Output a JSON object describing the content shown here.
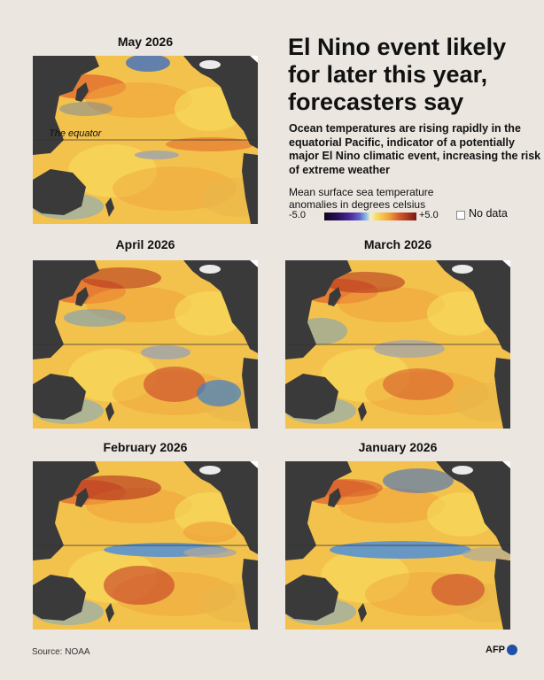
{
  "header": {
    "title": "El Nino event likely for later this year, forecasters say",
    "subtitle": "Ocean temperatures are rising rapidly in the equatorial Pacific, indicator of a potentially major El Nino climatic event, increasing the risk of extreme weather"
  },
  "legend": {
    "title": "Mean surface sea temperature anomalies in degrees celsius",
    "min_label": "-5.0",
    "max_label": "+5.0",
    "no_data_label": "No data",
    "scale_colors": [
      "#10061e",
      "#2a0f5c",
      "#4a2a99",
      "#5f61c9",
      "#8ec2e8",
      "#f4f0c8",
      "#f7d85a",
      "#f0a33a",
      "#d3552a",
      "#7a1914"
    ],
    "no_data_color": "#ffffff",
    "land_color": "#3a3a3a"
  },
  "maps": [
    {
      "id": "may",
      "title": "May 2026",
      "equator_label": "The equator"
    },
    {
      "id": "april",
      "title": "April 2026"
    },
    {
      "id": "march",
      "title": "March 2026"
    },
    {
      "id": "february",
      "title": "February 2026"
    },
    {
      "id": "january",
      "title": "January 2026"
    }
  ],
  "footer": {
    "source": "Source: NOAA",
    "logo": "AFP"
  }
}
